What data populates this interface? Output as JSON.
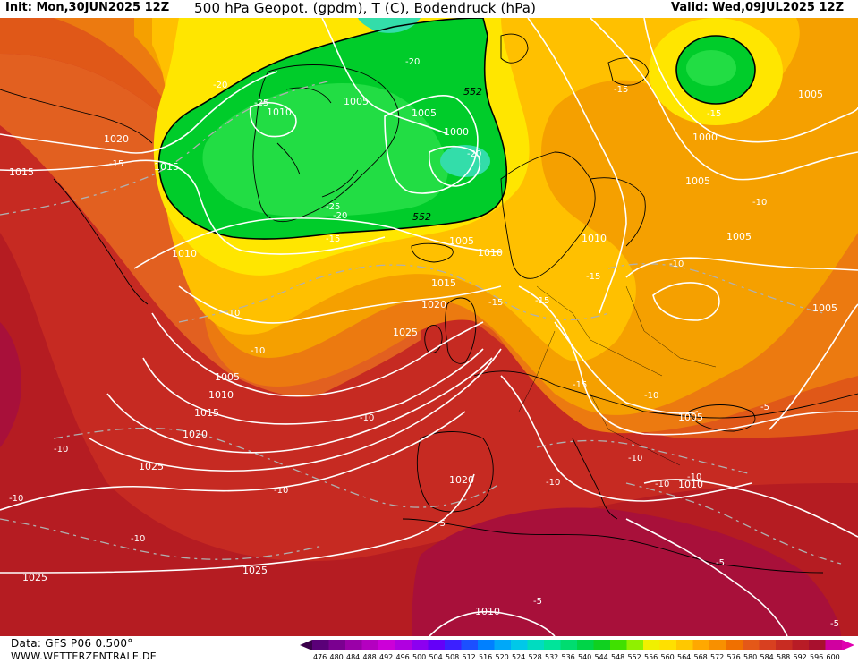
{
  "header": {
    "init": "Init: Mon,30JUN2025 12Z",
    "title": "500 hPa Geopot. (gpdm), T (C), Bodendruck (hPa)",
    "valid": "Valid: Wed,09JUL2025 12Z"
  },
  "footer": {
    "data_source": "Data: GFS P06 0.500°",
    "website": "WWW.WETTERZENTRALE.DE"
  },
  "colors": {
    "green_low": "#00cc2a",
    "green_mid": "#22dd44",
    "cyan": "#33ddaa",
    "yellow": "#ffe600",
    "yellow_orange": "#ffc000",
    "orange": "#f5a000",
    "orange_dark": "#ec7a10",
    "red_orange": "#e05818",
    "red": "#cc3020",
    "red_dark": "#b51c22",
    "crimson": "#a8103a"
  },
  "colorbar": {
    "ticks": [
      "476",
      "480",
      "484",
      "488",
      "492",
      "496",
      "500",
      "504",
      "508",
      "512",
      "516",
      "520",
      "524",
      "528",
      "532",
      "536",
      "540",
      "544",
      "548",
      "552",
      "556",
      "560",
      "564",
      "568",
      "572",
      "576",
      "580",
      "584",
      "588",
      "592",
      "596",
      "600"
    ],
    "colors": [
      "#5a0078",
      "#7a0090",
      "#9a00a8",
      "#b400c0",
      "#cc00d8",
      "#b000e0",
      "#8c00f0",
      "#6400f8",
      "#3c20ff",
      "#1c50ff",
      "#0080ff",
      "#00a8f8",
      "#00c8e8",
      "#00dcc0",
      "#00e49a",
      "#00dc70",
      "#00d448",
      "#10d020",
      "#40e000",
      "#90f000",
      "#f0f000",
      "#ffe000",
      "#ffc800",
      "#ffa800",
      "#f89000",
      "#f07000",
      "#e45818",
      "#d84020",
      "#c82c22",
      "#b81c26",
      "#a8102e",
      "#d000a0"
    ]
  },
  "isobars": [
    "1020",
    "1015",
    "1010",
    "1005",
    "1005",
    "1000",
    "1005",
    "1000",
    "1005",
    "1005",
    "1005",
    "1010",
    "1010",
    "1015",
    "1020",
    "1025",
    "1005",
    "1010",
    "1015",
    "1020",
    "1025",
    "1020",
    "1025",
    "1025",
    "1010",
    "1010",
    "1005",
    "1005"
  ],
  "temperature_labels": [
    "-20",
    "-20",
    "-25",
    "-15",
    "-20",
    "-15",
    "-25",
    "-20",
    "-15",
    "-15",
    "-20",
    "-15",
    "-10",
    "-10",
    "-15",
    "-15",
    "-10",
    "-15",
    "-10",
    "-15",
    "-10",
    "-10",
    "-10",
    "-10",
    "-10",
    "-10",
    "-10",
    "-10",
    "-10",
    "-5",
    "-5",
    "-5",
    "-5",
    "-5",
    "-10",
    "-10"
  ],
  "geopotential_labels": [
    "552",
    "552"
  ]
}
